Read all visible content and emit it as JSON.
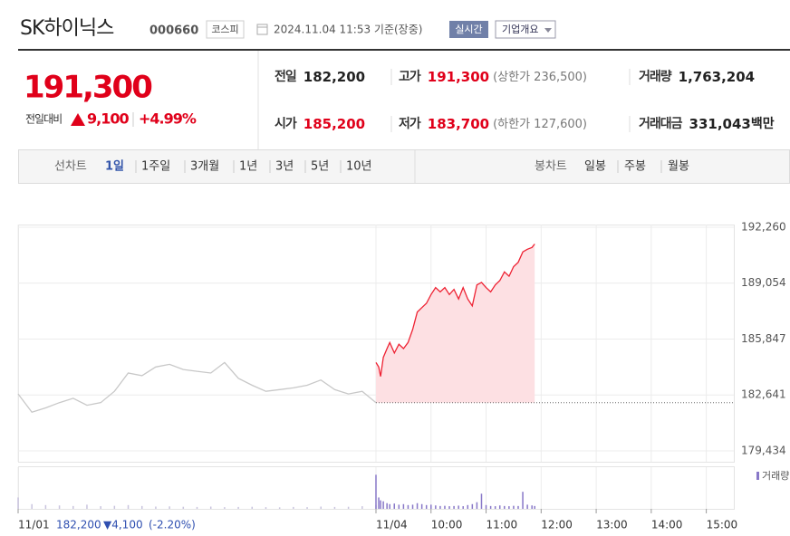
{
  "header": {
    "title": "SK하이닉스",
    "code": "000660",
    "market": "코스피",
    "timestamp": "2024.11.04 11:53 기준(장중)",
    "realtime": "실시간",
    "company_info": "기업개요"
  },
  "quote": {
    "price": "191,300",
    "change_label": "전일대비",
    "change": "9,100",
    "change_pct": "+4.99%",
    "stats": [
      {
        "label": "전일",
        "value": "182,200",
        "color": "#222222"
      },
      {
        "label": "고가",
        "value": "191,300",
        "note": "(상한가 236,500)",
        "color": "#e0001a"
      },
      {
        "label": "거래량",
        "value": "1,763,204",
        "color": "#222222"
      },
      {
        "label": "시가",
        "value": "185,200",
        "color": "#e0001a"
      },
      {
        "label": "저가",
        "value": "183,700",
        "note": "(하한가 127,600)",
        "color": "#e0001a"
      },
      {
        "label": "거래대금",
        "value": "331,043",
        "unit": "백만",
        "color": "#222222"
      }
    ]
  },
  "tabs": {
    "line_label": "선차트",
    "line_periods": [
      "1일",
      "1주일",
      "3개월",
      "1년",
      "3년",
      "5년",
      "10년"
    ],
    "candle_label": "봉차트",
    "candle_periods": [
      "일봉",
      "주봉",
      "월봉"
    ]
  },
  "prev_day": {
    "close": "182,200",
    "change": "▼4,100",
    "change_pct": "(-2.20%)"
  },
  "chart_data": {
    "type": "line",
    "xlim": [
      0,
      780
    ],
    "xticks": [
      {
        "value": 0,
        "label": "11/01"
      },
      {
        "value": 390,
        "label": "11/04"
      },
      {
        "value": 450,
        "label": "10:00"
      },
      {
        "value": 510,
        "label": "11:00"
      },
      {
        "value": 570,
        "label": "12:00"
      },
      {
        "value": 630,
        "label": "13:00"
      },
      {
        "value": 690,
        "label": "14:00"
      },
      {
        "value": 750,
        "label": "15:00"
      }
    ],
    "ylim": [
      178811,
      192416
    ],
    "yticks": [
      {
        "value": 179434,
        "label": "179,434"
      },
      {
        "value": 182641,
        "label": "182,641"
      },
      {
        "value": 185847,
        "label": "185,847"
      },
      {
        "value": 189054,
        "label": "189,054"
      },
      {
        "value": 192260,
        "label": "192,260"
      }
    ],
    "grid": true,
    "baseline": 182200,
    "volume_legend": "거래량",
    "volume_ylim": [
      0,
      220000
    ],
    "volume_color": "#8878c8",
    "series": [
      {
        "color": "#c8c8c8",
        "fill": false,
        "volume_color": "#c9c4de",
        "x": [
          0,
          15,
          30,
          45,
          60,
          75,
          90,
          105,
          120,
          135,
          150,
          165,
          180,
          195,
          210,
          225,
          240,
          255,
          270,
          285,
          300,
          315,
          330,
          345,
          360,
          375,
          390
        ],
        "values": [
          182700,
          181650,
          181900,
          182200,
          182450,
          182050,
          182200,
          182850,
          183900,
          183750,
          184250,
          184400,
          184100,
          184000,
          183900,
          184500,
          183600,
          183200,
          182850,
          182950,
          183050,
          183200,
          183500,
          182950,
          182700,
          182850,
          182200
        ],
        "volume": [
          60000,
          25000,
          20000,
          18000,
          15000,
          22000,
          14000,
          16000,
          20000,
          15000,
          12000,
          13000,
          11000,
          10000,
          12000,
          9000,
          10000,
          11000,
          9000,
          8000,
          10000,
          9000,
          12000,
          10000,
          11000,
          14000,
          20000
        ]
      },
      {
        "color": "#ee2233",
        "fill": "#fde0e3",
        "volume_color": "#8878c8",
        "x": [
          390,
          393,
          395,
          398,
          402,
          405,
          410,
          415,
          420,
          425,
          430,
          435,
          440,
          445,
          450,
          455,
          460,
          465,
          470,
          475,
          480,
          485,
          490,
          495,
          500,
          505,
          510,
          515,
          520,
          525,
          530,
          535,
          540,
          545,
          550,
          555,
          560,
          563
        ],
        "values": [
          184500,
          184250,
          183700,
          184800,
          185300,
          185650,
          185050,
          185550,
          185300,
          185650,
          186400,
          187400,
          187650,
          187900,
          188400,
          188800,
          188550,
          188800,
          188400,
          188700,
          188150,
          188800,
          188150,
          187750,
          188950,
          189100,
          188800,
          188550,
          188950,
          189200,
          189700,
          189450,
          190000,
          190250,
          190850,
          191000,
          191100,
          191300
        ],
        "volume": [
          180000,
          60000,
          45000,
          40000,
          30000,
          25000,
          28000,
          22000,
          25000,
          20000,
          22000,
          30000,
          25000,
          20000,
          22000,
          18000,
          15000,
          16000,
          14000,
          15000,
          17000,
          14000,
          20000,
          25000,
          35000,
          80000,
          20000,
          15000,
          14000,
          18000,
          15000,
          14000,
          16000,
          15000,
          90000,
          22000,
          18000,
          15000
        ]
      }
    ]
  }
}
